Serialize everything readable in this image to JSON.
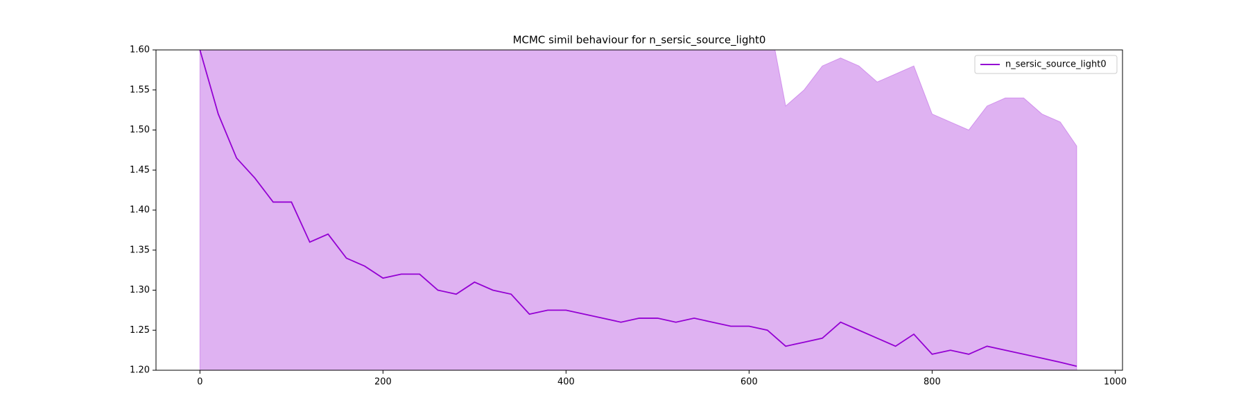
{
  "chart_data": {
    "type": "line",
    "title": "MCMC simil behaviour for n_sersic_source_light0",
    "x": [
      0,
      20,
      40,
      60,
      80,
      100,
      120,
      140,
      160,
      180,
      200,
      220,
      240,
      260,
      280,
      300,
      320,
      340,
      360,
      380,
      400,
      420,
      440,
      460,
      480,
      500,
      520,
      540,
      560,
      580,
      600,
      620,
      640,
      660,
      680,
      700,
      720,
      740,
      760,
      780,
      800,
      820,
      840,
      860,
      880,
      900,
      920,
      940,
      958
    ],
    "series": [
      {
        "name": "n_sersic_source_light0",
        "color": "#9400d3",
        "values": [
          1.6,
          1.52,
          1.465,
          1.44,
          1.41,
          1.41,
          1.36,
          1.37,
          1.34,
          1.33,
          1.315,
          1.32,
          1.32,
          1.3,
          1.295,
          1.31,
          1.3,
          1.295,
          1.27,
          1.275,
          1.275,
          1.27,
          1.265,
          1.26,
          1.265,
          1.265,
          1.26,
          1.265,
          1.26,
          1.255,
          1.255,
          1.25,
          1.23,
          1.235,
          1.24,
          1.26,
          1.25,
          1.24,
          1.23,
          1.245,
          1.22,
          1.225,
          1.22,
          1.23,
          1.225,
          1.22,
          1.215,
          1.21,
          1.205
        ],
        "band_upper": [
          1.65,
          1.65,
          1.65,
          1.65,
          1.65,
          1.65,
          1.65,
          1.65,
          1.65,
          1.65,
          1.65,
          1.65,
          1.65,
          1.65,
          1.65,
          1.65,
          1.65,
          1.65,
          1.65,
          1.65,
          1.65,
          1.65,
          1.65,
          1.65,
          1.65,
          1.65,
          1.65,
          1.65,
          1.65,
          1.65,
          1.65,
          1.65,
          1.53,
          1.55,
          1.58,
          1.59,
          1.58,
          1.56,
          1.57,
          1.58,
          1.52,
          1.51,
          1.5,
          1.53,
          1.54,
          1.54,
          1.52,
          1.51,
          1.48
        ],
        "band_color": "#9400d3"
      }
    ],
    "xlim": [
      -48,
      1008
    ],
    "xticks": [
      0,
      200,
      400,
      600,
      800,
      1000
    ],
    "ylim": [
      1.2,
      1.6
    ],
    "yticks": [
      {
        "value": 1.2,
        "label": "1.20"
      },
      1.25,
      {
        "value": 1.3,
        "label": "1.30"
      },
      1.35,
      {
        "value": 1.4,
        "label": "1.40"
      },
      1.45,
      {
        "value": 1.5,
        "label": "1.50"
      },
      1.55,
      {
        "value": 1.6,
        "label": "1.60"
      }
    ],
    "legend": "upper right"
  }
}
